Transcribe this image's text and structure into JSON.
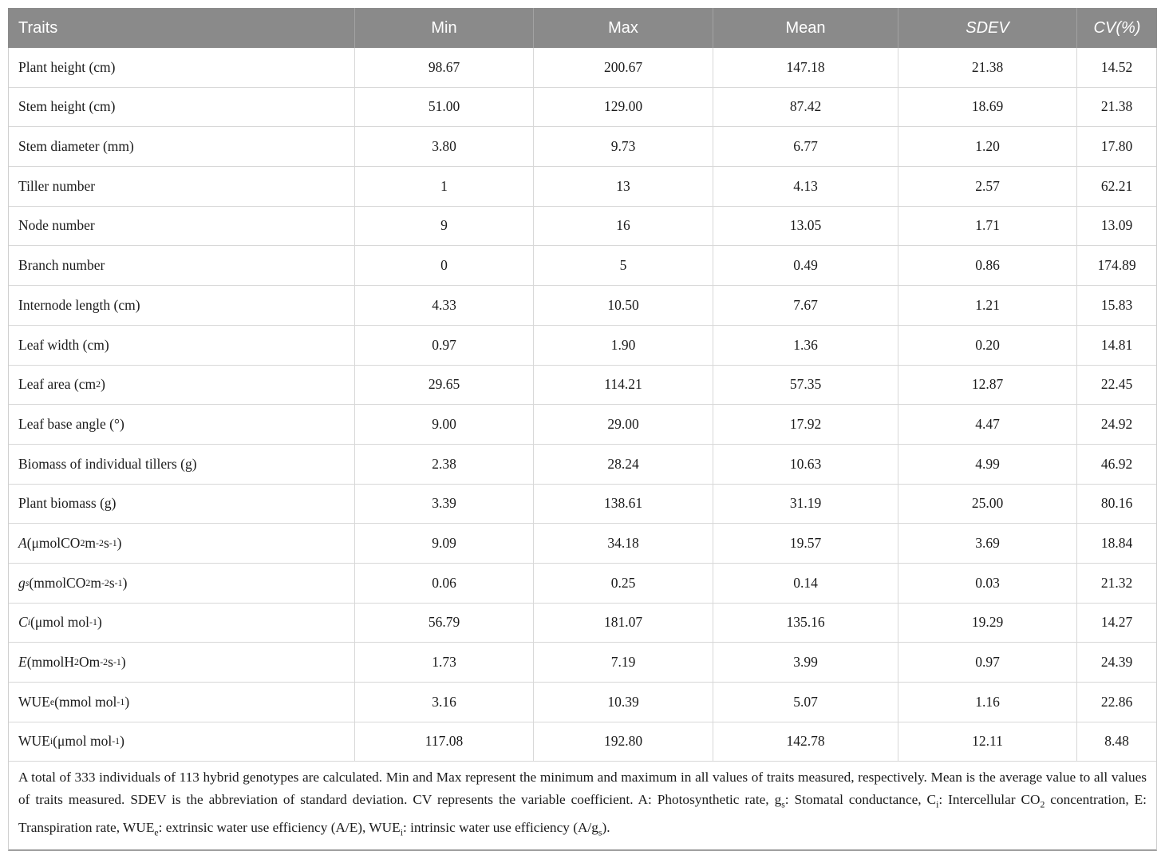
{
  "colors": {
    "header_bg": "#8a8a8a",
    "header_text": "#ffffff",
    "header_sep": "#a2a2a2",
    "row_border": "#d8d8d8",
    "outer_border": "#cfcfcf",
    "bottom_line": "#9c9c9c",
    "body_text": "#1b1b1b",
    "page_bg": "#ffffff"
  },
  "chart_data": {
    "type": "table",
    "columns": [
      "Traits",
      "Min",
      "Max",
      "Mean",
      "SDEV",
      "CV(%)"
    ],
    "rows": [
      [
        "Plant height (cm)",
        "98.67",
        "200.67",
        "147.18",
        "21.38",
        "14.52"
      ],
      [
        "Stem height (cm)",
        "51.00",
        "129.00",
        "87.42",
        "18.69",
        "21.38"
      ],
      [
        "Stem diameter (mm)",
        "3.80",
        "9.73",
        "6.77",
        "1.20",
        "17.80"
      ],
      [
        "Tiller number",
        "1",
        "13",
        "4.13",
        "2.57",
        "62.21"
      ],
      [
        "Node number",
        "9",
        "16",
        "13.05",
        "1.71",
        "13.09"
      ],
      [
        "Branch number",
        "0",
        "5",
        "0.49",
        "0.86",
        "174.89"
      ],
      [
        "Internode length (cm)",
        "4.33",
        "10.50",
        "7.67",
        "1.21",
        "15.83"
      ],
      [
        "Leaf width (cm)",
        "0.97",
        "1.90",
        "1.36",
        "0.20",
        "14.81"
      ],
      [
        "Leaf area (cm2)",
        "29.65",
        "114.21",
        "57.35",
        "12.87",
        "22.45"
      ],
      [
        "Leaf base angle (deg)",
        "9.00",
        "29.00",
        "17.92",
        "4.47",
        "24.92"
      ],
      [
        "Biomass of individual tillers (g)",
        "2.38",
        "28.24",
        "10.63",
        "4.99",
        "46.92"
      ],
      [
        "Plant biomass (g)",
        "3.39",
        "138.61",
        "31.19",
        "25.00",
        "80.16"
      ],
      [
        "A (umolCO2 m-2 s-1)",
        "9.09",
        "34.18",
        "19.57",
        "3.69",
        "18.84"
      ],
      [
        "gs (mmolCO2 m-2 s-1)",
        "0.06",
        "0.25",
        "0.14",
        "0.03",
        "21.32"
      ],
      [
        "Ci (umol mol-1)",
        "56.79",
        "181.07",
        "135.16",
        "19.29",
        "14.27"
      ],
      [
        "E (mmolH2O m-2 s-1)",
        "1.73",
        "7.19",
        "3.99",
        "0.97",
        "24.39"
      ],
      [
        "WUEe (mmol mol-1)",
        "3.16",
        "10.39",
        "5.07",
        "1.16",
        "22.86"
      ],
      [
        "WUEi (umol mol-1)",
        "117.08",
        "192.80",
        "142.78",
        "12.11",
        "8.48"
      ]
    ]
  },
  "table": {
    "columns": [
      {
        "key": "traits",
        "label": "Traits",
        "italic": false
      },
      {
        "key": "min",
        "label": "Min",
        "italic": false
      },
      {
        "key": "max",
        "label": "Max",
        "italic": false
      },
      {
        "key": "mean",
        "label": "Mean",
        "italic": false
      },
      {
        "key": "sdev",
        "label": "*SDEV*",
        "italic": true
      },
      {
        "key": "cv",
        "label": "*CV(%)*",
        "italic": true
      }
    ],
    "rows": [
      [
        "Plant height (cm)",
        "98.67",
        "200.67",
        "147.18",
        "21.38",
        "14.52"
      ],
      [
        "Stem height (cm)",
        "51.00",
        "129.00",
        "87.42",
        "18.69",
        "21.38"
      ],
      [
        "Stem diameter (mm)",
        "3.80",
        "9.73",
        "6.77",
        "1.20",
        "17.80"
      ],
      [
        "Tiller number",
        "1",
        "13",
        "4.13",
        "2.57",
        "62.21"
      ],
      [
        "Node number",
        "9",
        "16",
        "13.05",
        "1.71",
        "13.09"
      ],
      [
        "Branch number",
        "0",
        "5",
        "0.49",
        "0.86",
        "174.89"
      ],
      [
        "Internode length (cm)",
        "4.33",
        "10.50",
        "7.67",
        "1.21",
        "15.83"
      ],
      [
        "Leaf width (cm)",
        "0.97",
        "1.90",
        "1.36",
        "0.20",
        "14.81"
      ],
      [
        "Leaf area (cm^2^)",
        "29.65",
        "114.21",
        "57.35",
        "12.87",
        "22.45"
      ],
      [
        "Leaf base angle (°)",
        "9.00",
        "29.00",
        "17.92",
        "4.47",
        "24.92"
      ],
      [
        "Biomass of individual tillers (g)",
        "2.38",
        "28.24",
        "10.63",
        "4.99",
        "46.92"
      ],
      [
        "Plant biomass (g)",
        "3.39",
        "138.61",
        "31.19",
        "25.00",
        "80.16"
      ],
      [
        "*A* (μmolCO~2~m^-2^s^-1^)",
        "9.09",
        "34.18",
        "19.57",
        "3.69",
        "18.84"
      ],
      [
        "*g*~*s*~ (mmolCO~2~m^-2^s^-1^)",
        "0.06",
        "0.25",
        "0.14",
        "0.03",
        "21.32"
      ],
      [
        "*C*~*i*~ (μmol mol^-1^)",
        "56.79",
        "181.07",
        "135.16",
        "19.29",
        "14.27"
      ],
      [
        "*E* (mmolH~2~Om^-2^s^-1^)",
        "1.73",
        "7.19",
        "3.99",
        "0.97",
        "24.39"
      ],
      [
        "WUE~e~ (mmol mol^-1^)",
        "3.16",
        "10.39",
        "5.07",
        "1.16",
        "22.86"
      ],
      [
        "WUE~i~ (μmol mol^-1^)",
        "117.08",
        "192.80",
        "142.78",
        "12.11",
        "8.48"
      ]
    ],
    "footnote": "A total of 333 individuals of 113 hybrid genotypes are calculated. Min and Max represent the minimum and maximum in all values of traits measured, respectively. Mean is the average value to all values of traits measured. SDEV is the abbreviation of standard deviation. CV represents the variable coefficient. A: Photosynthetic rate, g~s~: Stomatal conductance, C~i~: Intercellular CO~2~ concentration, E: Transpiration rate, WUE~e~: extrinsic water use efficiency (A/E), WUE~i~: intrinsic water use efficiency (A/g~s~)."
  }
}
